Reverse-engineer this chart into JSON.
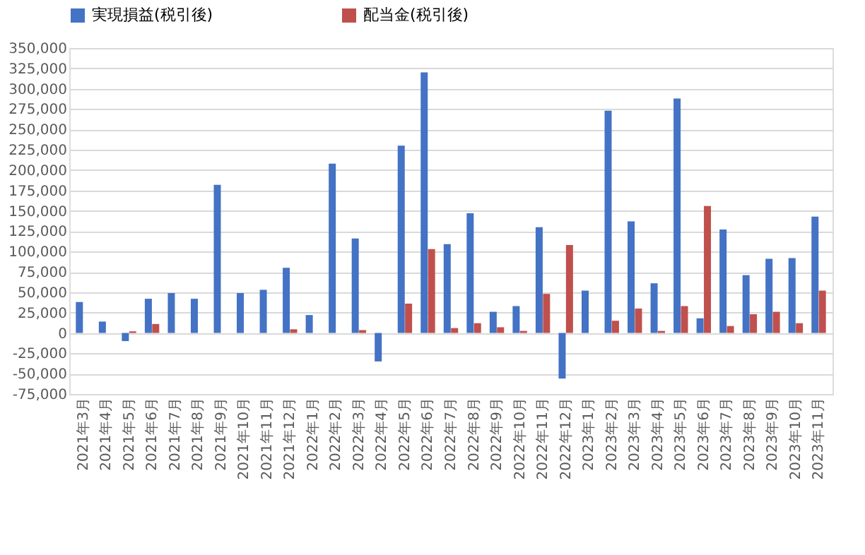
{
  "chart_data": {
    "type": "bar",
    "categories": [
      "2021年3月",
      "2021年4月",
      "2021年5月",
      "2021年6月",
      "2021年7月",
      "2021年8月",
      "2021年9月",
      "2021年10月",
      "2021年11月",
      "2021年12月",
      "2022年1月",
      "2022年2月",
      "2022年3月",
      "2022年4月",
      "2022年5月",
      "2022年6月",
      "2022年7月",
      "2022年8月",
      "2022年9月",
      "2022年10月",
      "2022年11月",
      "2022年12月",
      "2023年1月",
      "2023年2月",
      "2023年3月",
      "2023年4月",
      "2023年5月",
      "2023年6月",
      "2023年7月",
      "2023年8月",
      "2023年9月",
      "2023年10月",
      "2023年11月"
    ],
    "series": [
      {
        "name": "実現損益(税引後)",
        "color": "#4472c4",
        "values": [
          38000,
          14000,
          -10000,
          42000,
          49000,
          42000,
          182000,
          49000,
          53000,
          80000,
          22000,
          208000,
          116000,
          -35000,
          230000,
          320000,
          109000,
          147000,
          26000,
          33000,
          130000,
          -56000,
          52000,
          273000,
          137000,
          61000,
          288000,
          18000,
          127000,
          71000,
          91000,
          92000,
          143000
        ]
      },
      {
        "name": "配当金(税引後)",
        "color": "#c0504d",
        "values": [
          null,
          null,
          2000,
          11000,
          null,
          null,
          null,
          null,
          null,
          4500,
          null,
          null,
          3500,
          null,
          36000,
          103000,
          6000,
          12000,
          7000,
          2500,
          48000,
          108000,
          null,
          15000,
          30000,
          2500,
          33000,
          156000,
          8500,
          23000,
          26000,
          12000,
          52000
        ]
      }
    ],
    "ylim": [
      -75000,
      350000
    ],
    "yticks": [
      {
        "value": -75000,
        "label": "-75,000"
      },
      {
        "value": -50000,
        "label": "-50,000"
      },
      {
        "value": -25000,
        "label": "-25,000"
      },
      {
        "value": 0,
        "label": "0"
      },
      {
        "value": 25000,
        "label": "25,000"
      },
      {
        "value": 50000,
        "label": "50,000"
      },
      {
        "value": 75000,
        "label": "75,000"
      },
      {
        "value": 100000,
        "label": "100,000"
      },
      {
        "value": 125000,
        "label": "125,000"
      },
      {
        "value": 150000,
        "label": "150,000"
      },
      {
        "value": 175000,
        "label": "175,000"
      },
      {
        "value": 200000,
        "label": "200,000"
      },
      {
        "value": 225000,
        "label": "225,000"
      },
      {
        "value": 250000,
        "label": "250,000"
      },
      {
        "value": 275000,
        "label": "275,000"
      },
      {
        "value": 300000,
        "label": "300,000"
      },
      {
        "value": 325000,
        "label": "325,000"
      },
      {
        "value": 350000,
        "label": "350,000"
      }
    ],
    "grid": "y",
    "legend": "top"
  }
}
